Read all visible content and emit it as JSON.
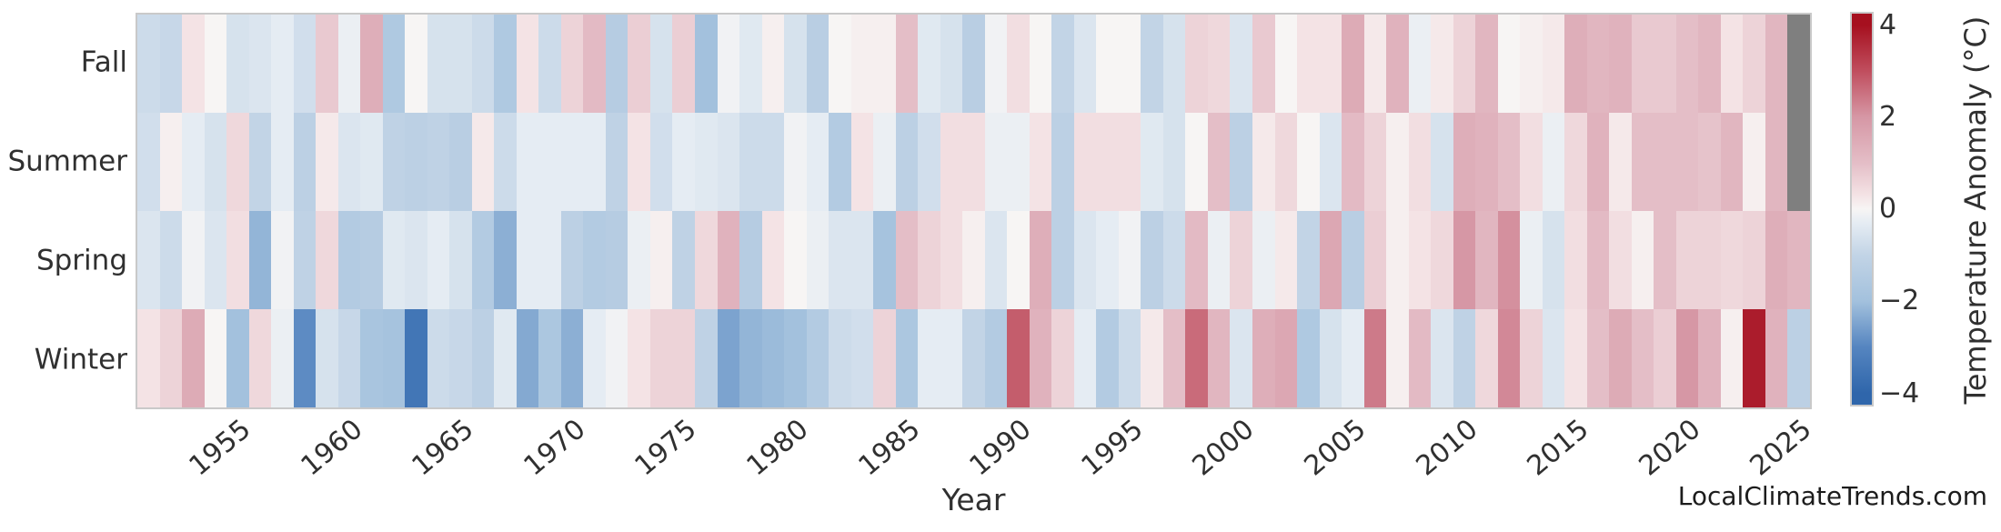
{
  "watermark": "LocalClimateTrends.com",
  "style": {
    "background": "#ffffff",
    "text_color": "#303030",
    "plot_border_color": "#c9c9c9"
  },
  "chart_data": {
    "type": "heatmap",
    "title": "",
    "xlabel": "Year",
    "ylabel": "",
    "rows": [
      "Fall",
      "Summer",
      "Spring",
      "Winter"
    ],
    "year_start": 1951,
    "year_end": 2025,
    "xticks": [
      1955,
      1960,
      1965,
      1970,
      1975,
      1980,
      1985,
      1990,
      1995,
      2000,
      2005,
      2010,
      2015,
      2020,
      2025
    ],
    "grid": false,
    "legend_position": "right-colorbar",
    "colorbar": {
      "label": "Temperature Anomaly (°C)",
      "tick_values": [
        4,
        2,
        0,
        -2,
        -4
      ],
      "tick_labels": [
        "4",
        "2",
        "0",
        "−2",
        "−4"
      ],
      "vmin": -4,
      "vmax": 4
    },
    "colormap": {
      "name": "RdBu_r-like (blue = cold, red = warm)",
      "nan_color": "#7f7f7f",
      "stops": [
        [
          -4,
          "#2f66ab"
        ],
        [
          -3,
          "#5585c0"
        ],
        [
          -2,
          "#a3c1dd"
        ],
        [
          -1,
          "#c2d4e6"
        ],
        [
          -0.3,
          "#e5ecf3"
        ],
        [
          0,
          "#f7f5f4"
        ],
        [
          0.3,
          "#f4e3e5"
        ],
        [
          1,
          "#e4bec7"
        ],
        [
          2,
          "#d697a5"
        ],
        [
          3,
          "#c04e5e"
        ],
        [
          4,
          "#a6101f"
        ]
      ]
    },
    "series": [
      {
        "name": "Fall",
        "values": [
          -0.8,
          -0.9,
          0.3,
          0.0,
          -0.6,
          -0.5,
          -0.3,
          -0.7,
          0.8,
          -0.2,
          1.4,
          -1.6,
          0.0,
          -0.6,
          -0.6,
          -0.8,
          -1.6,
          0.3,
          -0.8,
          0.6,
          1.1,
          -1.4,
          0.7,
          -0.6,
          0.7,
          -2.0,
          -0.1,
          -0.4,
          0.1,
          -0.6,
          -1.3,
          0.0,
          0.1,
          0.1,
          1.0,
          -0.4,
          -0.6,
          -1.3,
          -0.1,
          0.4,
          0.0,
          -1.0,
          -0.5,
          0.0,
          0.0,
          -1.0,
          -0.6,
          0.6,
          0.5,
          -0.5,
          0.8,
          0.0,
          0.3,
          0.3,
          1.5,
          0.2,
          1.3,
          -0.2,
          0.2,
          0.6,
          1.2,
          0.0,
          0.1,
          0.2,
          1.4,
          1.2,
          1.3,
          0.8,
          0.8,
          1.0,
          1.2,
          0.3,
          0.6,
          1.2,
          null
        ]
      },
      {
        "name": "Summer",
        "values": [
          -0.7,
          0.1,
          -0.3,
          -0.6,
          0.5,
          -1.0,
          -0.3,
          -1.2,
          0.2,
          -0.5,
          -0.4,
          -1.1,
          -1.2,
          -1.1,
          -1.3,
          0.2,
          -0.8,
          -0.3,
          -0.3,
          -0.3,
          -0.3,
          -1.1,
          0.3,
          -0.7,
          -0.3,
          -0.4,
          -0.5,
          -0.8,
          -0.8,
          -0.1,
          -0.3,
          -1.5,
          0.3,
          -0.2,
          -1.2,
          -0.7,
          0.4,
          0.4,
          -0.2,
          -0.2,
          0.3,
          -1.2,
          0.4,
          0.4,
          0.4,
          -0.4,
          -0.6,
          0.0,
          1.0,
          -1.2,
          0.2,
          0.5,
          0.0,
          -0.5,
          1.1,
          0.6,
          0.1,
          0.4,
          -0.6,
          1.4,
          1.3,
          1.0,
          0.4,
          -0.2,
          0.5,
          1.3,
          0.2,
          1.0,
          1.0,
          1.0,
          0.9,
          1.2,
          0.1,
          1.2,
          null
        ]
      },
      {
        "name": "Spring",
        "values": [
          -0.5,
          -0.8,
          -0.1,
          -0.5,
          0.4,
          -2.2,
          -0.1,
          -1.1,
          0.5,
          -1.5,
          -1.4,
          -0.4,
          -0.5,
          -0.3,
          -0.6,
          -1.5,
          -2.3,
          -0.3,
          -0.3,
          -1.2,
          -1.5,
          -1.4,
          -0.2,
          0.1,
          -1.1,
          0.5,
          1.3,
          -1.4,
          0.3,
          0.0,
          -0.2,
          -0.5,
          -0.5,
          -1.9,
          1.0,
          0.6,
          0.4,
          0.1,
          -0.5,
          0.0,
          1.4,
          -1.2,
          -0.5,
          -0.3,
          -0.1,
          -1.2,
          -0.8,
          1.1,
          -0.2,
          0.6,
          -0.2,
          0.2,
          -1.0,
          1.6,
          -1.3,
          0.7,
          0.1,
          0.3,
          0.5,
          2.0,
          1.2,
          2.1,
          -0.2,
          -0.6,
          0.4,
          1.1,
          0.4,
          0.1,
          1.0,
          0.6,
          0.6,
          0.5,
          0.6,
          1.4,
          1.2
        ]
      },
      {
        "name": "Winter",
        "values": [
          0.3,
          0.6,
          1.5,
          0.0,
          -2.0,
          0.5,
          -0.2,
          -2.9,
          -0.6,
          -0.9,
          -1.8,
          -1.9,
          -3.5,
          -0.8,
          -0.9,
          -1.2,
          -0.4,
          -2.4,
          -1.7,
          -2.3,
          -0.3,
          -0.1,
          0.3,
          0.6,
          0.6,
          -1.1,
          -2.5,
          -2.2,
          -2.1,
          -2.0,
          -1.5,
          -0.8,
          -0.7,
          0.6,
          -1.7,
          -0.3,
          -0.3,
          -1.0,
          -1.5,
          2.8,
          1.3,
          0.6,
          -0.3,
          -1.5,
          -0.8,
          0.2,
          1.0,
          2.6,
          1.2,
          -0.5,
          1.4,
          1.6,
          -1.6,
          -0.6,
          -0.3,
          2.4,
          0.1,
          1.1,
          -0.5,
          -1.1,
          0.5,
          2.2,
          0.6,
          -0.5,
          0.3,
          1.0,
          1.5,
          1.0,
          0.7,
          2.0,
          1.3,
          0.1,
          3.8,
          1.3,
          -1.2
        ]
      }
    ],
    "missing_cells": [
      [
        "Fall",
        2025
      ],
      [
        "Summer",
        2025
      ]
    ]
  }
}
